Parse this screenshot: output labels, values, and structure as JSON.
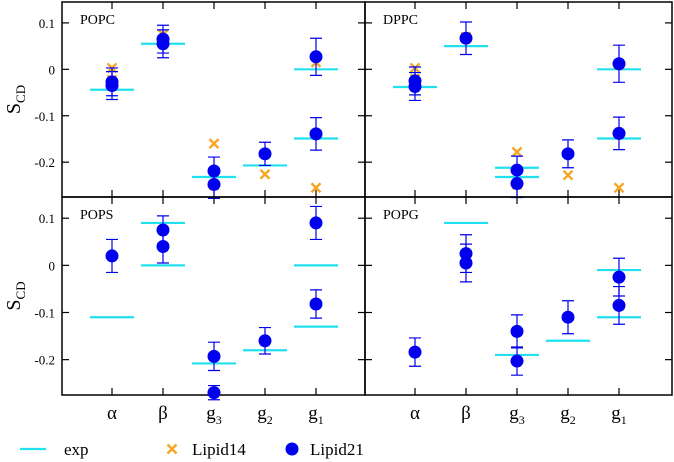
{
  "chart_data": {
    "type": "scatter",
    "ylabel_main": "S",
    "ylabel_sub": "CD",
    "categories": [
      {
        "main": "α",
        "sub": ""
      },
      {
        "main": "β",
        "sub": ""
      },
      {
        "main": "g",
        "sub": "3"
      },
      {
        "main": "g",
        "sub": "2"
      },
      {
        "main": "g",
        "sub": "1"
      }
    ],
    "ylim": [
      -0.275,
      0.145
    ],
    "yticks": [
      0.1,
      0,
      -0.1,
      -0.2
    ],
    "ytick_labels": [
      "0.1",
      "0",
      "-0.1",
      "-0.2"
    ],
    "legend": {
      "placement": "bottom",
      "entries": [
        {
          "key": "exp",
          "label": "exp",
          "marker": "line"
        },
        {
          "key": "lipid14",
          "label": "Lipid14",
          "marker": "x"
        },
        {
          "key": "lipid21",
          "label": "Lipid21",
          "marker": "circle"
        }
      ]
    },
    "colors": {
      "exp": "#22e0f0",
      "lipid14": "#f5a623",
      "lipid21": "#0000ee",
      "frame": "#000000"
    },
    "panels": [
      {
        "title": "POPC",
        "exp": [
          {
            "x": 1,
            "y": -0.044
          },
          {
            "x": 2,
            "y": 0.055
          },
          {
            "x": 3,
            "y": -0.232
          },
          {
            "x": 4,
            "y": -0.207
          },
          {
            "x": 5,
            "y": 0.0
          },
          {
            "x": 5,
            "y": -0.149
          }
        ],
        "lipid14": [
          {
            "x": 1,
            "y": 0.003
          },
          {
            "x": 1,
            "y": -0.023
          },
          {
            "x": 2,
            "y": 0.075
          },
          {
            "x": 3,
            "y": -0.16
          },
          {
            "x": 3,
            "y": -0.25
          },
          {
            "x": 4,
            "y": -0.226
          },
          {
            "x": 5,
            "y": 0.015
          },
          {
            "x": 5,
            "y": -0.255
          }
        ],
        "lipid21": [
          {
            "x": 1,
            "y": -0.027,
            "err": 0.03
          },
          {
            "x": 1,
            "y": -0.035,
            "err": 0.03
          },
          {
            "x": 2,
            "y": 0.065,
            "err": 0.03
          },
          {
            "x": 2,
            "y": 0.055,
            "err": 0.03
          },
          {
            "x": 3,
            "y": -0.219,
            "err": 0.03
          },
          {
            "x": 3,
            "y": -0.248,
            "err": 0.03
          },
          {
            "x": 4,
            "y": -0.182,
            "err": 0.025
          },
          {
            "x": 5,
            "y": 0.027,
            "err": 0.04
          },
          {
            "x": 5,
            "y": -0.139,
            "err": 0.035
          }
        ]
      },
      {
        "title": "DPPC",
        "exp": [
          {
            "x": 1,
            "y": -0.038
          },
          {
            "x": 2,
            "y": 0.05
          },
          {
            "x": 3,
            "y": -0.212
          },
          {
            "x": 3,
            "y": -0.232
          },
          {
            "x": 5,
            "y": 0.0
          },
          {
            "x": 5,
            "y": -0.149
          }
        ],
        "lipid14": [
          {
            "x": 1,
            "y": 0.003
          },
          {
            "x": 1,
            "y": -0.02
          },
          {
            "x": 2,
            "y": 0.07
          },
          {
            "x": 3,
            "y": -0.178
          },
          {
            "x": 3,
            "y": -0.248
          },
          {
            "x": 4,
            "y": -0.228
          },
          {
            "x": 5,
            "y": 0.01
          },
          {
            "x": 5,
            "y": -0.255
          }
        ],
        "lipid21": [
          {
            "x": 1,
            "y": -0.025,
            "err": 0.03
          },
          {
            "x": 1,
            "y": -0.037,
            "err": 0.03
          },
          {
            "x": 2,
            "y": 0.067,
            "err": 0.035
          },
          {
            "x": 3,
            "y": -0.217,
            "err": 0.03
          },
          {
            "x": 3,
            "y": -0.246,
            "err": 0.03
          },
          {
            "x": 4,
            "y": -0.182,
            "err": 0.03
          },
          {
            "x": 5,
            "y": 0.012,
            "err": 0.04
          },
          {
            "x": 5,
            "y": -0.138,
            "err": 0.035
          }
        ]
      },
      {
        "title": "POPS",
        "exp": [
          {
            "x": 1,
            "y": -0.11
          },
          {
            "x": 2,
            "y": 0.09
          },
          {
            "x": 2,
            "y": 0.0
          },
          {
            "x": 3,
            "y": -0.208
          },
          {
            "x": 4,
            "y": -0.18
          },
          {
            "x": 5,
            "y": 0.0
          },
          {
            "x": 5,
            "y": -0.13
          }
        ],
        "lipid14": [],
        "lipid21": [
          {
            "x": 1,
            "y": 0.02,
            "err": 0.035
          },
          {
            "x": 2,
            "y": 0.075,
            "err": 0.03
          },
          {
            "x": 2,
            "y": 0.04,
            "err": 0.035
          },
          {
            "x": 3,
            "y": -0.193,
            "err": 0.03
          },
          {
            "x": 3,
            "y": -0.27,
            "err": 0.015
          },
          {
            "x": 4,
            "y": -0.16,
            "err": 0.028
          },
          {
            "x": 5,
            "y": 0.09,
            "err": 0.035
          },
          {
            "x": 5,
            "y": -0.082,
            "err": 0.03
          }
        ]
      },
      {
        "title": "POPG",
        "exp": [
          {
            "x": 2,
            "y": 0.09
          },
          {
            "x": 3,
            "y": -0.19
          },
          {
            "x": 4,
            "y": -0.16
          },
          {
            "x": 5,
            "y": -0.01
          },
          {
            "x": 5,
            "y": -0.11
          }
        ],
        "lipid14": [],
        "lipid21": [
          {
            "x": 1,
            "y": -0.184,
            "err": 0.03
          },
          {
            "x": 2,
            "y": 0.025,
            "err": 0.04
          },
          {
            "x": 2,
            "y": 0.005,
            "err": 0.04
          },
          {
            "x": 3,
            "y": -0.14,
            "err": 0.035
          },
          {
            "x": 3,
            "y": -0.203,
            "err": 0.03
          },
          {
            "x": 4,
            "y": -0.11,
            "err": 0.035
          },
          {
            "x": 5,
            "y": -0.025,
            "err": 0.04
          },
          {
            "x": 5,
            "y": -0.085,
            "err": 0.04
          }
        ]
      }
    ]
  }
}
